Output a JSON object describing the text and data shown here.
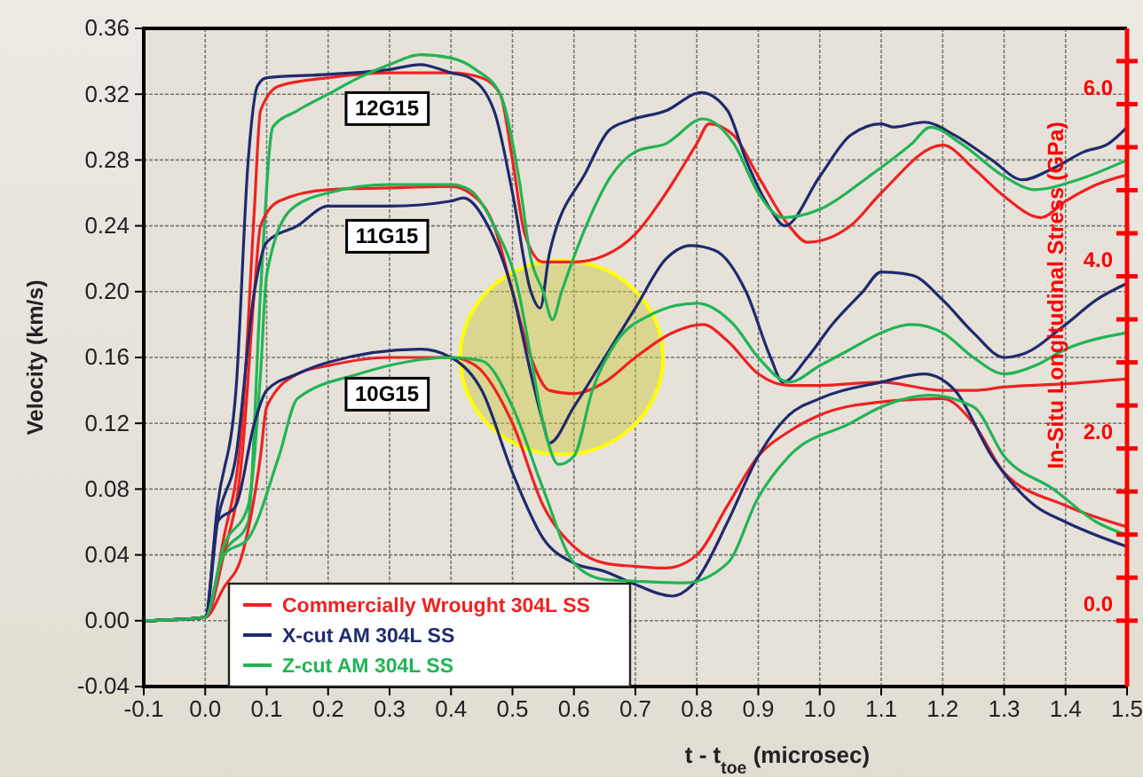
{
  "chart_data": {
    "type": "line",
    "xlabel": "t - t$_{toe}$ (microsec)",
    "ylabel": "Velocity (km/s)",
    "y2label": "In-Situ Longitudinal Stress (GPa)",
    "xlim": [
      -0.1,
      1.5
    ],
    "ylim": [
      -0.04,
      0.36
    ],
    "y2lim": [
      -0.765,
      6.88
    ],
    "xticks": [
      {
        "value": -0.1,
        "label": "-0.1"
      },
      {
        "value": 0,
        "label": "0.0"
      },
      {
        "value": 0.1,
        "label": "0.1"
      },
      {
        "value": 0.2,
        "label": "0.2"
      },
      {
        "value": 0.3,
        "label": "0.3"
      },
      {
        "value": 0.4,
        "label": "0.4"
      },
      {
        "value": 0.5,
        "label": "0.5"
      },
      {
        "value": 0.6,
        "label": "0.6"
      },
      {
        "value": 0.7,
        "label": "0.7"
      },
      {
        "value": 0.8,
        "label": "0.8"
      },
      {
        "value": 0.9,
        "label": "0.9"
      },
      {
        "value": 1.0,
        "label": "1.0"
      },
      {
        "value": 1.1,
        "label": "1.1"
      },
      {
        "value": 1.2,
        "label": "1.2"
      },
      {
        "value": 1.3,
        "label": "1.3"
      },
      {
        "value": 1.4,
        "label": "1.4"
      },
      {
        "value": 1.5,
        "label": "1.5"
      }
    ],
    "yticks": [
      {
        "value": -0.04,
        "label": "-0.04"
      },
      {
        "value": 0,
        "label": "0.00"
      },
      {
        "value": 0.04,
        "label": "0.04"
      },
      {
        "value": 0.08,
        "label": "0.08"
      },
      {
        "value": 0.12,
        "label": "0.12"
      },
      {
        "value": 0.16,
        "label": "0.16"
      },
      {
        "value": 0.2,
        "label": "0.20"
      },
      {
        "value": 0.24,
        "label": "0.24"
      },
      {
        "value": 0.28,
        "label": "0.28"
      },
      {
        "value": 0.32,
        "label": "0.32"
      },
      {
        "value": 0.36,
        "label": "0.36"
      }
    ],
    "y2ticks": [
      {
        "value": 0,
        "label": "0.0"
      },
      {
        "value": 0.5,
        "label": null
      },
      {
        "value": 1,
        "label": null
      },
      {
        "value": 1.5,
        "label": null
      },
      {
        "value": 2,
        "label": "2.0"
      },
      {
        "value": 2.5,
        "label": null
      },
      {
        "value": 3,
        "label": null
      },
      {
        "value": 3.5,
        "label": null
      },
      {
        "value": 4,
        "label": "4.0"
      },
      {
        "value": 4.5,
        "label": null
      },
      {
        "value": 5,
        "label": null
      },
      {
        "value": 5.5,
        "label": null
      },
      {
        "value": 6,
        "label": "6.0"
      },
      {
        "value": 6.5,
        "label": null
      }
    ],
    "grid": true,
    "legend": "bottom left",
    "annotations": [
      "12G15",
      "11G15",
      "10G15"
    ],
    "series": [
      {
        "name": "Commercially Wrought 304L SS",
        "color": "#ee2222",
        "x": [
          -0.1,
          0,
          0.03,
          0.06,
          0.08,
          0.09,
          0.12,
          0.2,
          0.3,
          0.4,
          0.45,
          0.48,
          0.5,
          0.52,
          0.55,
          0.6,
          0.65,
          0.7,
          0.75,
          0.8,
          0.82,
          0.86,
          0.9,
          0.95,
          0.98,
          1.05,
          1.1,
          1.2,
          1.25,
          1.3,
          1.36,
          1.4,
          1.45,
          1.5
        ],
        "values": [
          0,
          0.002,
          0.05,
          0.12,
          0.25,
          0.31,
          0.325,
          0.33,
          0.333,
          0.333,
          0.33,
          0.32,
          0.28,
          0.235,
          0.218,
          0.218,
          0.222,
          0.235,
          0.26,
          0.29,
          0.302,
          0.295,
          0.27,
          0.24,
          0.23,
          0.24,
          0.26,
          0.289,
          0.275,
          0.258,
          0.245,
          0.255,
          0.265,
          0.271
        ]
      },
      {
        "name": "X-cut AM 304L SS",
        "color": "#1f2a6e",
        "x": [
          -0.1,
          0,
          0.02,
          0.05,
          0.07,
          0.085,
          0.1,
          0.2,
          0.3,
          0.35,
          0.4,
          0.43,
          0.47,
          0.5,
          0.53,
          0.545,
          0.56,
          0.62,
          0.657,
          0.69,
          0.75,
          0.807,
          0.85,
          0.88,
          0.92,
          0.943,
          1.0,
          1.05,
          1.1,
          1.12,
          1.17,
          1.22,
          1.28,
          1.33,
          1.38,
          1.43,
          1.47,
          1.5
        ],
        "values": [
          0,
          0.002,
          0.07,
          0.14,
          0.28,
          0.325,
          0.33,
          0.332,
          0.335,
          0.338,
          0.333,
          0.33,
          0.31,
          0.26,
          0.2,
          0.19,
          0.223,
          0.273,
          0.298,
          0.304,
          0.31,
          0.321,
          0.31,
          0.28,
          0.25,
          0.24,
          0.27,
          0.295,
          0.302,
          0.3,
          0.303,
          0.295,
          0.28,
          0.268,
          0.275,
          0.285,
          0.29,
          0.3
        ]
      },
      {
        "name": "Z-cut AM 304L SS",
        "color": "#22b455",
        "x": [
          -0.1,
          0,
          0.03,
          0.07,
          0.09,
          0.11,
          0.15,
          0.2,
          0.25,
          0.3,
          0.35,
          0.4,
          0.44,
          0.48,
          0.51,
          0.53,
          0.55,
          0.565,
          0.58,
          0.62,
          0.66,
          0.7,
          0.75,
          0.81,
          0.86,
          0.9,
          0.94,
          1.0,
          1.08,
          1.15,
          1.18,
          1.23,
          1.3,
          1.35,
          1.42,
          1.5
        ],
        "values": [
          0,
          0.002,
          0.04,
          0.06,
          0.2,
          0.3,
          0.31,
          0.32,
          0.33,
          0.338,
          0.344,
          0.342,
          0.335,
          0.32,
          0.27,
          0.22,
          0.2,
          0.183,
          0.2,
          0.24,
          0.27,
          0.285,
          0.29,
          0.305,
          0.29,
          0.26,
          0.245,
          0.25,
          0.27,
          0.29,
          0.3,
          0.29,
          0.27,
          0.262,
          0.268,
          0.28
        ]
      },
      {
        "color": "#ee2222",
        "x": [
          -0.1,
          0,
          0.03,
          0.06,
          0.08,
          0.09,
          0.12,
          0.2,
          0.3,
          0.4,
          0.43,
          0.47,
          0.5,
          0.53,
          0.56,
          0.6,
          0.65,
          0.7,
          0.76,
          0.81,
          0.85,
          0.9,
          0.95,
          1.0,
          1.1,
          1.2,
          1.25,
          1.3,
          1.4,
          1.5
        ],
        "values": [
          0,
          0.002,
          0.04,
          0.1,
          0.2,
          0.24,
          0.255,
          0.262,
          0.263,
          0.264,
          0.26,
          0.24,
          0.2,
          0.16,
          0.14,
          0.138,
          0.145,
          0.16,
          0.175,
          0.18,
          0.17,
          0.15,
          0.143,
          0.143,
          0.145,
          0.14,
          0.14,
          0.142,
          0.144,
          0.147
        ]
      },
      {
        "color": "#1f2a6e",
        "x": [
          -0.1,
          0,
          0.02,
          0.05,
          0.08,
          0.1,
          0.15,
          0.2,
          0.3,
          0.4,
          0.42,
          0.46,
          0.5,
          0.53,
          0.55,
          0.56,
          0.6,
          0.65,
          0.7,
          0.75,
          0.79,
          0.83,
          0.88,
          0.92,
          0.94,
          0.98,
          1.02,
          1.07,
          1.1,
          1.15,
          1.2,
          1.25,
          1.3,
          1.33,
          1.4,
          1.45,
          1.5
        ],
        "values": [
          0,
          0.002,
          0.06,
          0.1,
          0.2,
          0.23,
          0.24,
          0.252,
          0.252,
          0.255,
          0.257,
          0.24,
          0.2,
          0.15,
          0.12,
          0.108,
          0.13,
          0.16,
          0.19,
          0.22,
          0.228,
          0.225,
          0.2,
          0.16,
          0.145,
          0.16,
          0.18,
          0.2,
          0.212,
          0.21,
          0.195,
          0.175,
          0.16,
          0.162,
          0.18,
          0.195,
          0.205
        ]
      },
      {
        "color": "#22b455",
        "x": [
          -0.1,
          0,
          0.03,
          0.07,
          0.09,
          0.1,
          0.14,
          0.2,
          0.3,
          0.4,
          0.43,
          0.47,
          0.51,
          0.53,
          0.55,
          0.575,
          0.6,
          0.63,
          0.67,
          0.72,
          0.8,
          0.86,
          0.9,
          0.95,
          1.0,
          1.05,
          1.1,
          1.15,
          1.2,
          1.25,
          1.3,
          1.35,
          1.4,
          1.5
        ],
        "values": [
          0,
          0.002,
          0.045,
          0.07,
          0.15,
          0.21,
          0.25,
          0.26,
          0.265,
          0.265,
          0.262,
          0.24,
          0.2,
          0.16,
          0.12,
          0.095,
          0.1,
          0.14,
          0.17,
          0.185,
          0.193,
          0.18,
          0.16,
          0.145,
          0.155,
          0.165,
          0.175,
          0.18,
          0.175,
          0.16,
          0.15,
          0.155,
          0.165,
          0.175
        ]
      },
      {
        "color": "#ee2222",
        "x": [
          -0.1,
          0,
          0.03,
          0.06,
          0.09,
          0.1,
          0.15,
          0.2,
          0.3,
          0.4,
          0.44,
          0.5,
          0.55,
          0.6,
          0.65,
          0.7,
          0.75,
          0.8,
          0.85,
          0.9,
          0.95,
          1.0,
          1.1,
          1.2,
          1.25,
          1.3,
          1.4,
          1.5
        ],
        "values": [
          0,
          0.002,
          0.02,
          0.04,
          0.1,
          0.13,
          0.15,
          0.155,
          0.16,
          0.16,
          0.155,
          0.12,
          0.07,
          0.045,
          0.035,
          0.033,
          0.032,
          0.04,
          0.07,
          0.1,
          0.115,
          0.125,
          0.133,
          0.135,
          0.12,
          0.09,
          0.07,
          0.057
        ]
      },
      {
        "color": "#1f2a6e",
        "x": [
          -0.1,
          0,
          0.02,
          0.05,
          0.08,
          0.1,
          0.15,
          0.2,
          0.35,
          0.4,
          0.45,
          0.5,
          0.55,
          0.6,
          0.65,
          0.7,
          0.76,
          0.8,
          0.85,
          0.9,
          0.95,
          1.0,
          1.1,
          1.17,
          1.22,
          1.28,
          1.35,
          1.4,
          1.5
        ],
        "values": [
          0,
          0.002,
          0.06,
          0.07,
          0.12,
          0.14,
          0.15,
          0.157,
          0.165,
          0.16,
          0.14,
          0.09,
          0.05,
          0.035,
          0.03,
          0.022,
          0.015,
          0.025,
          0.06,
          0.1,
          0.125,
          0.135,
          0.145,
          0.15,
          0.14,
          0.1,
          0.07,
          0.06,
          0.045
        ]
      },
      {
        "color": "#22b455",
        "x": [
          -0.1,
          0,
          0.03,
          0.07,
          0.12,
          0.15,
          0.25,
          0.4,
          0.45,
          0.5,
          0.55,
          0.6,
          0.65,
          0.7,
          0.78,
          0.85,
          0.9,
          0.95,
          1.05,
          1.1,
          1.18,
          1.25,
          1.3,
          1.38,
          1.45,
          1.5
        ],
        "values": [
          0,
          0.002,
          0.04,
          0.05,
          0.1,
          0.135,
          0.15,
          0.16,
          0.158,
          0.13,
          0.08,
          0.035,
          0.025,
          0.024,
          0.023,
          0.035,
          0.075,
          0.1,
          0.12,
          0.13,
          0.137,
          0.13,
          0.1,
          0.08,
          0.06,
          0.052
        ]
      }
    ]
  }
}
